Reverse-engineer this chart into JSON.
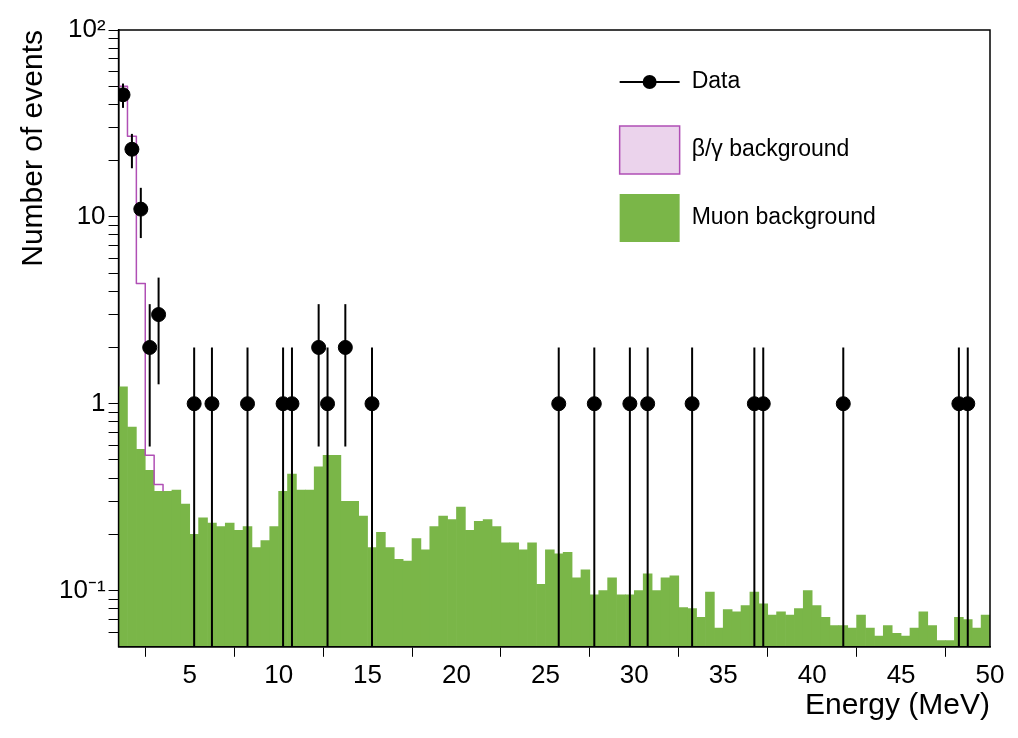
{
  "chart_data": {
    "type": "histogram",
    "xlabel": "Energy (MeV)",
    "ylabel": "Number of events",
    "bins": [
      1,
      1.5,
      2,
      2.5,
      3,
      3.5,
      4,
      4.5,
      5,
      5.5,
      6,
      6.5,
      7,
      7.5,
      8,
      8.5,
      9,
      9.5,
      10,
      10.5,
      11,
      11.5,
      12,
      12.5,
      13,
      13.5,
      14,
      14.5,
      15,
      15.5,
      16,
      16.5,
      17,
      17.5,
      18,
      18.5,
      19,
      19.5,
      20,
      20.5,
      21,
      21.5,
      22,
      22.5,
      23,
      23.5,
      24,
      24.5,
      25,
      25.5,
      26,
      26.5,
      27,
      27.5,
      28,
      28.5,
      29,
      29.5,
      30,
      30.5,
      31,
      31.5,
      32,
      32.5,
      33,
      33.5,
      34,
      34.5,
      35,
      35.5,
      36,
      36.5,
      37,
      37.5,
      38,
      38.5,
      39,
      39.5,
      40,
      40.5,
      41,
      41.5,
      42,
      42.5,
      43,
      43.5,
      44,
      44.5,
      45,
      45.5,
      46,
      46.5,
      47,
      47.5,
      48,
      48.5,
      49,
      49.5,
      50
    ],
    "series": [
      {
        "name": "Data",
        "type": "scatter",
        "color": "#000000",
        "x": [
          1.25,
          1.75,
          2.25,
          2.75,
          3.25,
          5.25,
          6.25,
          8.25,
          10.25,
          10.75,
          12.25,
          12.75,
          13.75,
          15.25,
          25.75,
          27.75,
          29.75,
          30.75,
          33.25,
          36.75,
          37.25,
          41.75,
          48.25,
          48.75
        ],
        "values": [
          45,
          23,
          11,
          2,
          3,
          1,
          1,
          1,
          1,
          1,
          2,
          1,
          2,
          1,
          1,
          1,
          1,
          1,
          1,
          1,
          1,
          1,
          1,
          1
        ],
        "errors": [
          [
            38.3,
            51.7
          ],
          [
            18.2,
            27.8
          ],
          [
            7.7,
            14.3
          ],
          [
            0.59,
            3.41
          ],
          [
            1.27,
            4.73
          ],
          [
            0.05,
            2
          ],
          [
            0.05,
            2
          ],
          [
            0.05,
            2
          ],
          [
            0.05,
            2
          ],
          [
            0.05,
            2
          ],
          [
            0.59,
            3.41
          ],
          [
            0.05,
            2
          ],
          [
            0.59,
            3.41
          ],
          [
            0.05,
            2
          ],
          [
            0.05,
            2
          ],
          [
            0.05,
            2
          ],
          [
            0.05,
            2
          ],
          [
            0.05,
            2
          ],
          [
            0.05,
            2
          ],
          [
            0.05,
            2
          ],
          [
            0.05,
            2
          ],
          [
            0.05,
            2
          ],
          [
            0.05,
            2
          ],
          [
            0.05,
            2
          ]
        ]
      },
      {
        "name": "β/γ background",
        "type": "step",
        "marker": "none",
        "color": "#b04fb5",
        "x": [
          1,
          1.5,
          2,
          2.5,
          3,
          3.5
        ],
        "values": [
          50,
          27,
          4.4,
          0.53,
          0.37,
          0.34
        ]
      },
      {
        "name": "Muon background",
        "color": "#7ab648",
        "values": [
          1.23,
          0.75,
          0.57,
          0.44,
          0.34,
          0.34,
          0.345,
          0.29,
          0.2,
          0.245,
          0.23,
          0.22,
          0.23,
          0.21,
          0.22,
          0.17,
          0.185,
          0.22,
          0.34,
          0.42,
          0.345,
          0.345,
          0.46,
          0.53,
          0.53,
          0.3,
          0.3,
          0.25,
          0.17,
          0.205,
          0.17,
          0.147,
          0.144,
          0.19,
          0.165,
          0.22,
          0.25,
          0.24,
          0.28,
          0.21,
          0.235,
          0.24,
          0.22,
          0.18,
          0.18,
          0.165,
          0.18,
          0.108,
          0.165,
          0.157,
          0.16,
          0.117,
          0.129,
          0.095,
          0.1,
          0.117,
          0.095,
          0.095,
          0.1,
          0.123,
          0.1,
          0.117,
          0.12,
          0.081,
          0.08,
          0.072,
          0.098,
          0.063,
          0.079,
          0.077,
          0.083,
          0.098,
          0.085,
          0.074,
          0.077,
          0.074,
          0.08,
          0.1,
          0.083,
          0.072,
          0.065,
          0.065,
          0.063,
          0.074,
          0.063,
          0.057,
          0.065,
          0.059,
          0.057,
          0.063,
          0.077,
          0.065,
          0.054,
          0.054,
          0.072,
          0.07,
          0.063,
          0.074
        ]
      }
    ],
    "xlim": [
      1,
      50
    ],
    "xticks": [
      5,
      10,
      15,
      20,
      25,
      30,
      35,
      40,
      45,
      50
    ],
    "ylim": [
      0.05,
      100
    ],
    "yticks": [
      {
        "value": 0.06,
        "label": null
      },
      {
        "value": 0.07,
        "label": null
      },
      {
        "value": 0.08,
        "label": null
      },
      {
        "value": 0.09,
        "label": null
      },
      {
        "value": 0.1,
        "label": "10⁻¹"
      },
      {
        "value": 0.2,
        "label": null
      },
      {
        "value": 0.3,
        "label": null
      },
      {
        "value": 0.4,
        "label": null
      },
      {
        "value": 0.5,
        "label": null
      },
      {
        "value": 0.6,
        "label": null
      },
      {
        "value": 0.7,
        "label": null
      },
      {
        "value": 0.8,
        "label": null
      },
      {
        "value": 0.9,
        "label": null
      },
      {
        "value": 1,
        "label": "1"
      },
      {
        "value": 2,
        "label": null
      },
      {
        "value": 3,
        "label": null
      },
      {
        "value": 4,
        "label": null
      },
      {
        "value": 5,
        "label": null
      },
      {
        "value": 6,
        "label": null
      },
      {
        "value": 7,
        "label": null
      },
      {
        "value": 8,
        "label": null
      },
      {
        "value": 9,
        "label": null
      },
      {
        "value": 10,
        "label": "10"
      },
      {
        "value": 20,
        "label": null
      },
      {
        "value": 30,
        "label": null
      },
      {
        "value": 40,
        "label": null
      },
      {
        "value": 50,
        "label": null
      },
      {
        "value": 60,
        "label": null
      },
      {
        "value": 70,
        "label": null
      },
      {
        "value": 80,
        "label": null
      },
      {
        "value": 90,
        "label": null
      },
      {
        "value": 100,
        "label": "10²"
      }
    ],
    "log": "y",
    "grid": false,
    "legend": "top right",
    "marker": "circle"
  }
}
